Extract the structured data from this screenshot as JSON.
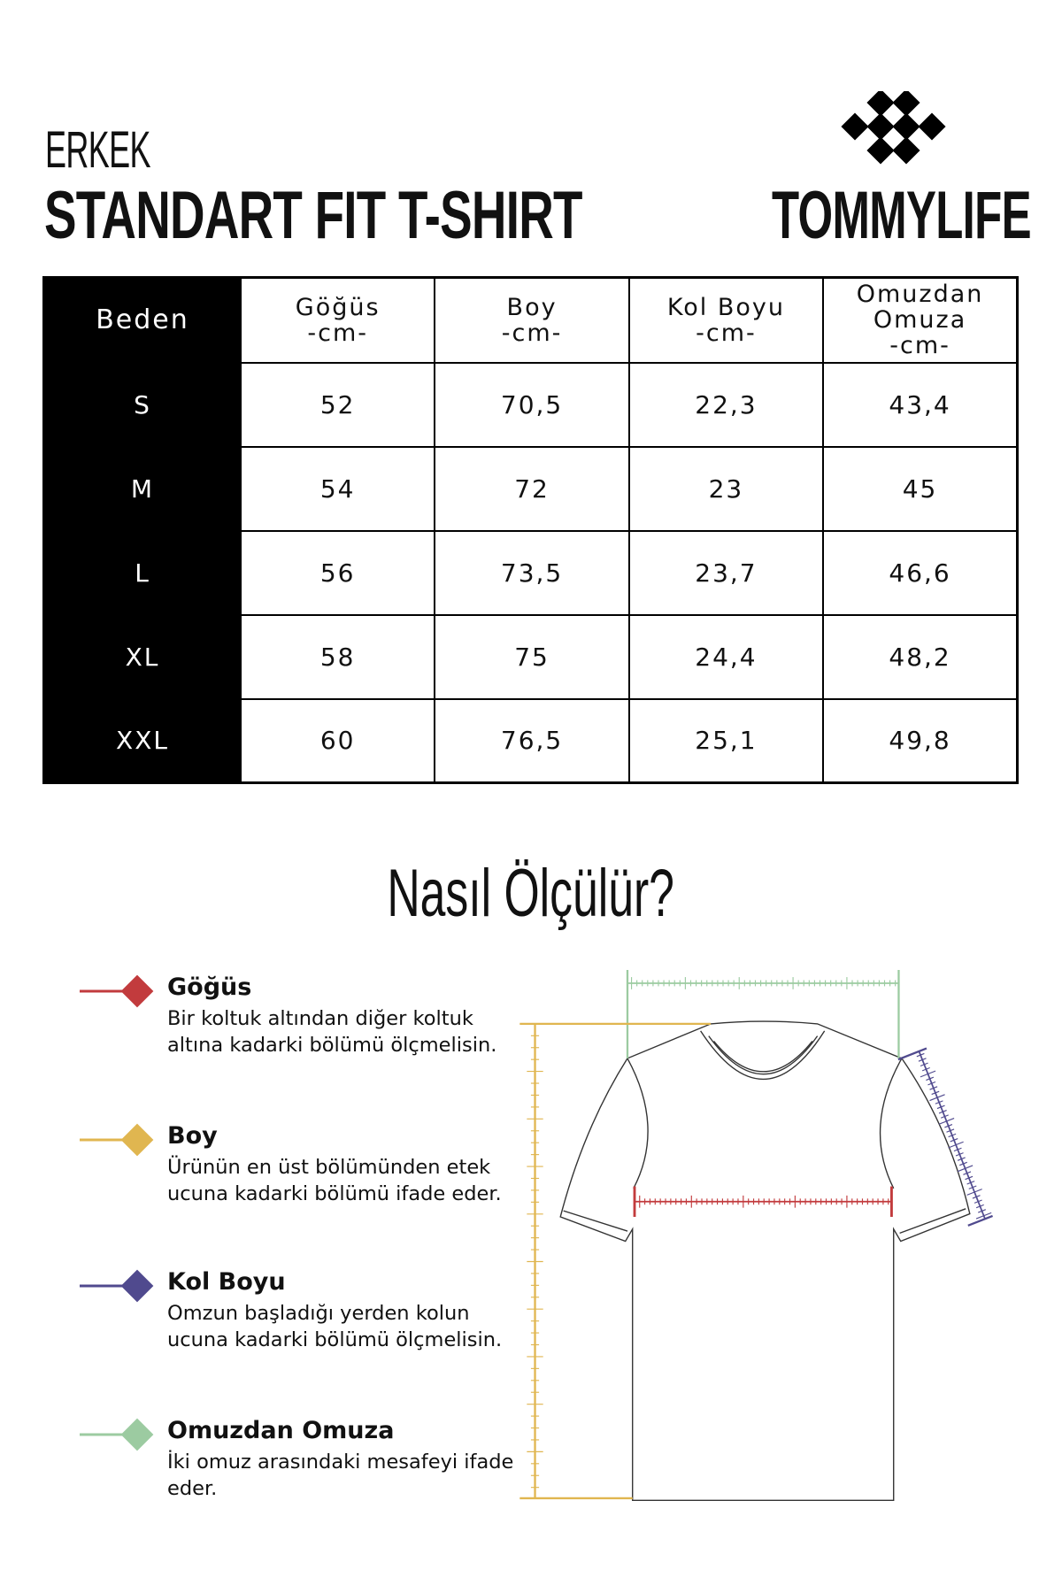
{
  "header": {
    "subtitle": "ERKEK",
    "title": "STANDART FIT T-SHIRT",
    "brand": "TOMMYLIFE",
    "logo_icon": "diamond-cluster-icon"
  },
  "table": {
    "headers": [
      [
        "Beden",
        ""
      ],
      [
        "Göğüs",
        "-cm-"
      ],
      [
        "Boy",
        "-cm-"
      ],
      [
        "Kol Boyu",
        "-cm-"
      ],
      [
        "Omuzdan Omuza",
        "-cm-"
      ]
    ],
    "rows": [
      [
        "S",
        "52",
        "70,5",
        "22,3",
        "43,4"
      ],
      [
        "M",
        "54",
        "72",
        "23",
        "45"
      ],
      [
        "L",
        "56",
        "73,5",
        "23,7",
        "46,6"
      ],
      [
        "XL",
        "58",
        "75",
        "24,4",
        "48,2"
      ],
      [
        "XXL",
        "60",
        "76,5",
        "25,1",
        "49,8"
      ]
    ]
  },
  "howto": {
    "title": "Nasıl Ölçülür?"
  },
  "legend": [
    {
      "title": "Göğüs",
      "desc": "Bir koltuk altından diğer koltuk altına kadarki bölümü ölçmelisin.",
      "color": "#c23b3d"
    },
    {
      "title": "Boy",
      "desc": "Ürünün en üst bölümünden etek ucuna kadarki bölümü ifade eder.",
      "color": "#e0b650"
    },
    {
      "title": "Kol Boyu",
      "desc": "Omzun başladığı yerden kolun ucuna kadarki bölümü ölçmelisin.",
      "color": "#504a8e"
    },
    {
      "title": "Omuzdan Omuza",
      "desc": "İki omuz arasındaki mesafeyi ifade eder.",
      "color": "#9ccba1"
    }
  ]
}
